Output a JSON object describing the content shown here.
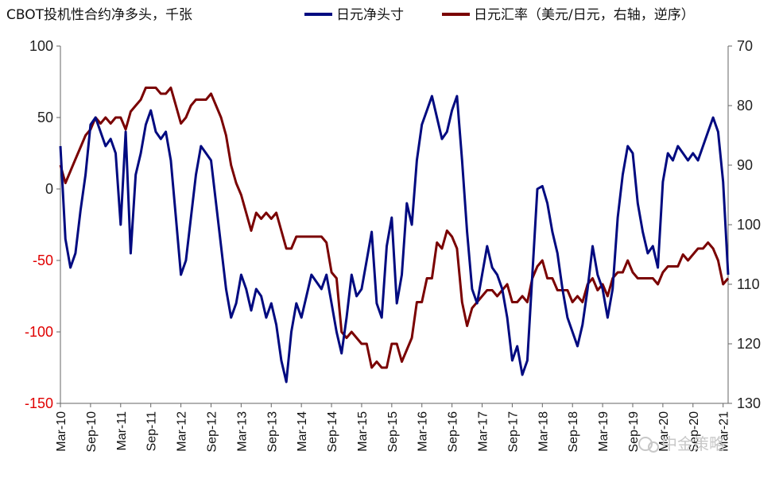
{
  "chart_data": {
    "type": "line",
    "title": "CBOT投机性合约净多头，千张",
    "legend": {
      "placement": "top",
      "entries": [
        "日元净头寸",
        "日元汇率（美元/日元，右轴，逆序）"
      ]
    },
    "watermark": "中金策略",
    "colors": {
      "series1": "#000a80",
      "series2": "#7a0000",
      "left_axis_negative": "#e00000"
    },
    "x_tick_labels": [
      "Mar-10",
      "Sep-10",
      "Mar-11",
      "Sep-11",
      "Mar-12",
      "Sep-12",
      "Mar-13",
      "Sep-13",
      "Mar-14",
      "Sep-14",
      "Mar-15",
      "Sep-15",
      "Mar-16",
      "Sep-16",
      "Mar-17",
      "Sep-17",
      "Mar-18",
      "Sep-18",
      "Mar-19",
      "Sep-19",
      "Mar-20",
      "Sep-20",
      "Mar-21"
    ],
    "x_range": [
      "2010-03",
      "2021-04"
    ],
    "y_left": {
      "range": [
        -150,
        100
      ],
      "ticks": [
        "100",
        "50",
        "0",
        "-50",
        "-100",
        "-150"
      ]
    },
    "y_right": {
      "range": [
        70,
        130
      ],
      "inverted": true,
      "ticks": [
        "70",
        "80",
        "90",
        "100",
        "110",
        "120",
        "130"
      ]
    },
    "grid": false,
    "series": [
      {
        "name": "日元净头寸",
        "axis": "left",
        "points": [
          [
            "2010-03",
            30
          ],
          [
            "2010-04",
            -35
          ],
          [
            "2010-05",
            -55
          ],
          [
            "2010-06",
            -45
          ],
          [
            "2010-07",
            -15
          ],
          [
            "2010-08",
            10
          ],
          [
            "2010-09",
            45
          ],
          [
            "2010-10",
            50
          ],
          [
            "2010-11",
            40
          ],
          [
            "2010-12",
            30
          ],
          [
            "2011-01",
            35
          ],
          [
            "2011-02",
            25
          ],
          [
            "2011-03",
            -25
          ],
          [
            "2011-04",
            40
          ],
          [
            "2011-05",
            -45
          ],
          [
            "2011-06",
            10
          ],
          [
            "2011-07",
            25
          ],
          [
            "2011-08",
            45
          ],
          [
            "2011-09",
            55
          ],
          [
            "2011-10",
            40
          ],
          [
            "2011-11",
            35
          ],
          [
            "2011-12",
            40
          ],
          [
            "2012-01",
            20
          ],
          [
            "2012-02",
            -20
          ],
          [
            "2012-03",
            -60
          ],
          [
            "2012-04",
            -50
          ],
          [
            "2012-05",
            -20
          ],
          [
            "2012-06",
            10
          ],
          [
            "2012-07",
            30
          ],
          [
            "2012-08",
            25
          ],
          [
            "2012-09",
            20
          ],
          [
            "2012-10",
            -10
          ],
          [
            "2012-11",
            -40
          ],
          [
            "2012-12",
            -70
          ],
          [
            "2013-01",
            -90
          ],
          [
            "2013-02",
            -80
          ],
          [
            "2013-03",
            -60
          ],
          [
            "2013-04",
            -70
          ],
          [
            "2013-05",
            -85
          ],
          [
            "2013-06",
            -70
          ],
          [
            "2013-07",
            -75
          ],
          [
            "2013-08",
            -90
          ],
          [
            "2013-09",
            -80
          ],
          [
            "2013-10",
            -95
          ],
          [
            "2013-11",
            -120
          ],
          [
            "2013-12",
            -135
          ],
          [
            "2014-01",
            -100
          ],
          [
            "2014-02",
            -80
          ],
          [
            "2014-03",
            -90
          ],
          [
            "2014-04",
            -75
          ],
          [
            "2014-05",
            -60
          ],
          [
            "2014-06",
            -65
          ],
          [
            "2014-07",
            -70
          ],
          [
            "2014-08",
            -60
          ],
          [
            "2014-09",
            -80
          ],
          [
            "2014-10",
            -100
          ],
          [
            "2014-11",
            -115
          ],
          [
            "2014-12",
            -90
          ],
          [
            "2015-01",
            -60
          ],
          [
            "2015-02",
            -75
          ],
          [
            "2015-03",
            -70
          ],
          [
            "2015-04",
            -50
          ],
          [
            "2015-05",
            -30
          ],
          [
            "2015-06",
            -80
          ],
          [
            "2015-07",
            -90
          ],
          [
            "2015-08",
            -40
          ],
          [
            "2015-09",
            -20
          ],
          [
            "2015-10",
            -80
          ],
          [
            "2015-11",
            -60
          ],
          [
            "2015-12",
            -10
          ],
          [
            "2016-01",
            -25
          ],
          [
            "2016-02",
            20
          ],
          [
            "2016-03",
            45
          ],
          [
            "2016-04",
            55
          ],
          [
            "2016-05",
            65
          ],
          [
            "2016-06",
            50
          ],
          [
            "2016-07",
            35
          ],
          [
            "2016-08",
            40
          ],
          [
            "2016-09",
            55
          ],
          [
            "2016-10",
            65
          ],
          [
            "2016-11",
            20
          ],
          [
            "2016-12",
            -30
          ],
          [
            "2017-01",
            -70
          ],
          [
            "2017-02",
            -80
          ],
          [
            "2017-03",
            -60
          ],
          [
            "2017-04",
            -40
          ],
          [
            "2017-05",
            -55
          ],
          [
            "2017-06",
            -60
          ],
          [
            "2017-07",
            -70
          ],
          [
            "2017-08",
            -90
          ],
          [
            "2017-09",
            -120
          ],
          [
            "2017-10",
            -110
          ],
          [
            "2017-11",
            -130
          ],
          [
            "2017-12",
            -120
          ],
          [
            "2018-01",
            -60
          ],
          [
            "2018-02",
            0
          ],
          [
            "2018-03",
            2
          ],
          [
            "2018-04",
            -10
          ],
          [
            "2018-05",
            -30
          ],
          [
            "2018-06",
            -45
          ],
          [
            "2018-07",
            -70
          ],
          [
            "2018-08",
            -90
          ],
          [
            "2018-09",
            -100
          ],
          [
            "2018-10",
            -110
          ],
          [
            "2018-11",
            -95
          ],
          [
            "2018-12",
            -70
          ],
          [
            "2019-01",
            -40
          ],
          [
            "2019-02",
            -60
          ],
          [
            "2019-03",
            -70
          ],
          [
            "2019-04",
            -90
          ],
          [
            "2019-05",
            -70
          ],
          [
            "2019-06",
            -20
          ],
          [
            "2019-07",
            10
          ],
          [
            "2019-08",
            30
          ],
          [
            "2019-09",
            25
          ],
          [
            "2019-10",
            -10
          ],
          [
            "2019-11",
            -30
          ],
          [
            "2019-12",
            -45
          ],
          [
            "2020-01",
            -40
          ],
          [
            "2020-02",
            -55
          ],
          [
            "2020-03",
            5
          ],
          [
            "2020-04",
            25
          ],
          [
            "2020-05",
            20
          ],
          [
            "2020-06",
            30
          ],
          [
            "2020-07",
            25
          ],
          [
            "2020-08",
            20
          ],
          [
            "2020-09",
            25
          ],
          [
            "2020-10",
            20
          ],
          [
            "2020-11",
            30
          ],
          [
            "2020-12",
            40
          ],
          [
            "2021-01",
            50
          ],
          [
            "2021-02",
            40
          ],
          [
            "2021-03",
            5
          ],
          [
            "2021-04",
            -60
          ]
        ]
      },
      {
        "name": "日元汇率（美元/日元，右轴，逆序）",
        "axis": "right",
        "points": [
          [
            "2010-03",
            90
          ],
          [
            "2010-04",
            93
          ],
          [
            "2010-05",
            91
          ],
          [
            "2010-06",
            89
          ],
          [
            "2010-07",
            87
          ],
          [
            "2010-08",
            85
          ],
          [
            "2010-09",
            84
          ],
          [
            "2010-10",
            82
          ],
          [
            "2010-11",
            83
          ],
          [
            "2010-12",
            82
          ],
          [
            "2011-01",
            83
          ],
          [
            "2011-02",
            82
          ],
          [
            "2011-03",
            82
          ],
          [
            "2011-04",
            84
          ],
          [
            "2011-05",
            81
          ],
          [
            "2011-06",
            80
          ],
          [
            "2011-07",
            79
          ],
          [
            "2011-08",
            77
          ],
          [
            "2011-09",
            77
          ],
          [
            "2011-10",
            77
          ],
          [
            "2011-11",
            78
          ],
          [
            "2011-12",
            78
          ],
          [
            "2012-01",
            77
          ],
          [
            "2012-02",
            80
          ],
          [
            "2012-03",
            83
          ],
          [
            "2012-04",
            82
          ],
          [
            "2012-05",
            80
          ],
          [
            "2012-06",
            79
          ],
          [
            "2012-07",
            79
          ],
          [
            "2012-08",
            79
          ],
          [
            "2012-09",
            78
          ],
          [
            "2012-10",
            80
          ],
          [
            "2012-11",
            82
          ],
          [
            "2012-12",
            85
          ],
          [
            "2013-01",
            90
          ],
          [
            "2013-02",
            93
          ],
          [
            "2013-03",
            95
          ],
          [
            "2013-04",
            98
          ],
          [
            "2013-05",
            101
          ],
          [
            "2013-06",
            98
          ],
          [
            "2013-07",
            99
          ],
          [
            "2013-08",
            98
          ],
          [
            "2013-09",
            99
          ],
          [
            "2013-10",
            98
          ],
          [
            "2013-11",
            101
          ],
          [
            "2013-12",
            104
          ],
          [
            "2014-01",
            104
          ],
          [
            "2014-02",
            102
          ],
          [
            "2014-03",
            102
          ],
          [
            "2014-04",
            102
          ],
          [
            "2014-05",
            102
          ],
          [
            "2014-06",
            102
          ],
          [
            "2014-07",
            102
          ],
          [
            "2014-08",
            103
          ],
          [
            "2014-09",
            108
          ],
          [
            "2014-10",
            109
          ],
          [
            "2014-11",
            118
          ],
          [
            "2014-12",
            119
          ],
          [
            "2015-01",
            118
          ],
          [
            "2015-02",
            119
          ],
          [
            "2015-03",
            120
          ],
          [
            "2015-04",
            120
          ],
          [
            "2015-05",
            124
          ],
          [
            "2015-06",
            123
          ],
          [
            "2015-07",
            124
          ],
          [
            "2015-08",
            124
          ],
          [
            "2015-09",
            120
          ],
          [
            "2015-10",
            120
          ],
          [
            "2015-11",
            123
          ],
          [
            "2015-12",
            121
          ],
          [
            "2016-01",
            119
          ],
          [
            "2016-02",
            113
          ],
          [
            "2016-03",
            113
          ],
          [
            "2016-04",
            109
          ],
          [
            "2016-05",
            109
          ],
          [
            "2016-06",
            103
          ],
          [
            "2016-07",
            104
          ],
          [
            "2016-08",
            101
          ],
          [
            "2016-09",
            102
          ],
          [
            "2016-10",
            104
          ],
          [
            "2016-11",
            113
          ],
          [
            "2016-12",
            117
          ],
          [
            "2017-01",
            114
          ],
          [
            "2017-02",
            113
          ],
          [
            "2017-03",
            112
          ],
          [
            "2017-04",
            111
          ],
          [
            "2017-05",
            111
          ],
          [
            "2017-06",
            112
          ],
          [
            "2017-07",
            111
          ],
          [
            "2017-08",
            110
          ],
          [
            "2017-09",
            113
          ],
          [
            "2017-10",
            113
          ],
          [
            "2017-11",
            112
          ],
          [
            "2017-12",
            113
          ],
          [
            "2018-01",
            109
          ],
          [
            "2018-02",
            107
          ],
          [
            "2018-03",
            106
          ],
          [
            "2018-04",
            109
          ],
          [
            "2018-05",
            109
          ],
          [
            "2018-06",
            111
          ],
          [
            "2018-07",
            111
          ],
          [
            "2018-08",
            111
          ],
          [
            "2018-09",
            113
          ],
          [
            "2018-10",
            112
          ],
          [
            "2018-11",
            113
          ],
          [
            "2018-12",
            110
          ],
          [
            "2019-01",
            109
          ],
          [
            "2019-02",
            111
          ],
          [
            "2019-03",
            110
          ],
          [
            "2019-04",
            112
          ],
          [
            "2019-05",
            109
          ],
          [
            "2019-06",
            108
          ],
          [
            "2019-07",
            108
          ],
          [
            "2019-08",
            106
          ],
          [
            "2019-09",
            108
          ],
          [
            "2019-10",
            109
          ],
          [
            "2019-11",
            109
          ],
          [
            "2019-12",
            109
          ],
          [
            "2020-01",
            109
          ],
          [
            "2020-02",
            110
          ],
          [
            "2020-03",
            108
          ],
          [
            "2020-04",
            107
          ],
          [
            "2020-05",
            107
          ],
          [
            "2020-06",
            107
          ],
          [
            "2020-07",
            105
          ],
          [
            "2020-08",
            106
          ],
          [
            "2020-09",
            105
          ],
          [
            "2020-10",
            104
          ],
          [
            "2020-11",
            104
          ],
          [
            "2020-12",
            103
          ],
          [
            "2021-01",
            104
          ],
          [
            "2021-02",
            106
          ],
          [
            "2021-03",
            110
          ],
          [
            "2021-04",
            109
          ]
        ]
      }
    ]
  }
}
